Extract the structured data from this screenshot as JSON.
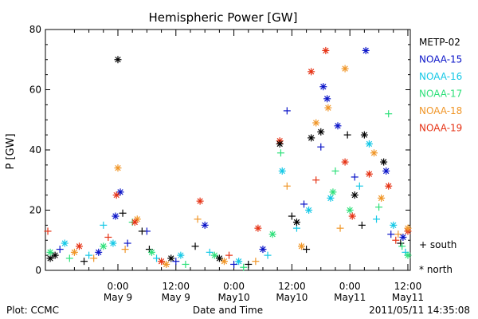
{
  "chart_data": {
    "type": "scatter",
    "title": "Hemispheric Power [GW]",
    "ylabel": "P [GW]",
    "xlabel": "Date and Time",
    "ylim": [
      0,
      80
    ],
    "y_ticks": [
      0,
      20,
      40,
      60,
      80
    ],
    "xlim_hours": [
      -15,
      60.5
    ],
    "x_ticks": [
      {
        "h": 0,
        "time": "0:00",
        "date": "May 9"
      },
      {
        "h": 12,
        "time": "12:00",
        "date": "May 9"
      },
      {
        "h": 24,
        "time": "0:00",
        "date": "May10"
      },
      {
        "h": 36,
        "time": "12:00",
        "date": "May10"
      },
      {
        "h": 48,
        "time": "0:00",
        "date": "May11"
      },
      {
        "h": 60,
        "time": "12:00",
        "date": "May11"
      }
    ],
    "grid": false,
    "legend_position": "right",
    "series": [
      {
        "name": "METP-02",
        "color": "#000000"
      },
      {
        "name": "NOAA-15",
        "color": "#0a14c8"
      },
      {
        "name": "NOAA-16",
        "color": "#14c8e6"
      },
      {
        "name": "NOAA-17",
        "color": "#2ee07a"
      },
      {
        "name": "NOAA-18",
        "color": "#f09628"
      },
      {
        "name": "NOAA-19",
        "color": "#e63214"
      }
    ],
    "marker_legend": [
      {
        "symbol": "+",
        "label": "south"
      },
      {
        "symbol": "*",
        "label": "north"
      }
    ],
    "points": [
      {
        "s": 0,
        "m": "*",
        "x": 0,
        "y": 70
      },
      {
        "s": 1,
        "m": "*",
        "x": 0.5,
        "y": 26
      },
      {
        "s": 1,
        "m": "*",
        "x": -0.5,
        "y": 18
      },
      {
        "s": 4,
        "m": "*",
        "x": 0,
        "y": 34
      },
      {
        "s": 5,
        "m": "*",
        "x": -0.3,
        "y": 25
      },
      {
        "s": 0,
        "m": "+",
        "x": 1,
        "y": 19
      },
      {
        "s": 2,
        "m": "+",
        "x": -3,
        "y": 15
      },
      {
        "s": 3,
        "m": "+",
        "x": 3,
        "y": 16
      },
      {
        "s": 1,
        "m": "+",
        "x": 6,
        "y": 13
      },
      {
        "s": 0,
        "m": "+",
        "x": 5,
        "y": 13
      },
      {
        "s": 4,
        "m": "*",
        "x": 4,
        "y": 17
      },
      {
        "s": 5,
        "m": "*",
        "x": 3.5,
        "y": 16
      },
      {
        "s": 0,
        "m": "*",
        "x": -13,
        "y": 5
      },
      {
        "s": 1,
        "m": "+",
        "x": -12,
        "y": 7
      },
      {
        "s": 2,
        "m": "*",
        "x": -11,
        "y": 9
      },
      {
        "s": 3,
        "m": "+",
        "x": -10,
        "y": 4
      },
      {
        "s": 4,
        "m": "*",
        "x": -9,
        "y": 6
      },
      {
        "s": 5,
        "m": "*",
        "x": -8,
        "y": 8
      },
      {
        "s": 0,
        "m": "+",
        "x": -7,
        "y": 3
      },
      {
        "s": 2,
        "m": "+",
        "x": -6,
        "y": 5
      },
      {
        "s": 4,
        "m": "+",
        "x": -5,
        "y": 4
      },
      {
        "s": 1,
        "m": "*",
        "x": -4,
        "y": 6
      },
      {
        "s": 3,
        "m": "*",
        "x": -3,
        "y": 8
      },
      {
        "s": 5,
        "m": "+",
        "x": -2,
        "y": 11
      },
      {
        "s": 0,
        "m": "*",
        "x": -14,
        "y": 4
      },
      {
        "s": 5,
        "m": "+",
        "x": -14.5,
        "y": 13
      },
      {
        "s": 3,
        "m": "*",
        "x": -14,
        "y": 6
      },
      {
        "s": 2,
        "m": "*",
        "x": -1,
        "y": 9
      },
      {
        "s": 4,
        "m": "+",
        "x": 1.5,
        "y": 7
      },
      {
        "s": 1,
        "m": "+",
        "x": 2,
        "y": 9
      },
      {
        "s": 0,
        "m": "+",
        "x": 6.5,
        "y": 7
      },
      {
        "s": 3,
        "m": "*",
        "x": 7,
        "y": 6
      },
      {
        "s": 2,
        "m": "+",
        "x": 8,
        "y": 4
      },
      {
        "s": 5,
        "m": "*",
        "x": 9,
        "y": 3
      },
      {
        "s": 4,
        "m": "*",
        "x": 10,
        "y": 2
      },
      {
        "s": 0,
        "m": "*",
        "x": 11,
        "y": 4
      },
      {
        "s": 1,
        "m": "+",
        "x": 12,
        "y": 3
      },
      {
        "s": 2,
        "m": "*",
        "x": 13,
        "y": 5
      },
      {
        "s": 3,
        "m": "+",
        "x": 14,
        "y": 2
      },
      {
        "s": 0,
        "m": "+",
        "x": 16,
        "y": 8
      },
      {
        "s": 4,
        "m": "+",
        "x": 16.5,
        "y": 17
      },
      {
        "s": 5,
        "m": "*",
        "x": 17,
        "y": 23
      },
      {
        "s": 1,
        "m": "*",
        "x": 18,
        "y": 15
      },
      {
        "s": 2,
        "m": "+",
        "x": 19,
        "y": 6
      },
      {
        "s": 3,
        "m": "*",
        "x": 20,
        "y": 5
      },
      {
        "s": 0,
        "m": "*",
        "x": 21,
        "y": 4
      },
      {
        "s": 4,
        "m": "*",
        "x": 22,
        "y": 3
      },
      {
        "s": 5,
        "m": "+",
        "x": 23,
        "y": 5
      },
      {
        "s": 1,
        "m": "+",
        "x": 24,
        "y": 2
      },
      {
        "s": 2,
        "m": "*",
        "x": 25,
        "y": 3
      },
      {
        "s": 3,
        "m": "+",
        "x": 26,
        "y": 1
      },
      {
        "s": 0,
        "m": "+",
        "x": 27,
        "y": 2
      },
      {
        "s": 5,
        "m": "*",
        "x": 29,
        "y": 14
      },
      {
        "s": 4,
        "m": "+",
        "x": 28.5,
        "y": 3
      },
      {
        "s": 1,
        "m": "*",
        "x": 30,
        "y": 7
      },
      {
        "s": 2,
        "m": "+",
        "x": 31,
        "y": 5
      },
      {
        "s": 3,
        "m": "*",
        "x": 32,
        "y": 12
      },
      {
        "s": 5,
        "m": "*",
        "x": 33.5,
        "y": 43
      },
      {
        "s": 0,
        "m": "*",
        "x": 33.5,
        "y": 42
      },
      {
        "s": 3,
        "m": "+",
        "x": 33.7,
        "y": 39
      },
      {
        "s": 2,
        "m": "*",
        "x": 34,
        "y": 33
      },
      {
        "s": 1,
        "m": "+",
        "x": 35,
        "y": 53
      },
      {
        "s": 4,
        "m": "+",
        "x": 35,
        "y": 28
      },
      {
        "s": 0,
        "m": "+",
        "x": 36,
        "y": 18
      },
      {
        "s": 2,
        "m": "+",
        "x": 37,
        "y": 14
      },
      {
        "s": 4,
        "m": "*",
        "x": 38,
        "y": 8
      },
      {
        "s": 0,
        "m": "+",
        "x": 39,
        "y": 7
      },
      {
        "s": 5,
        "m": "*",
        "x": 40,
        "y": 66
      },
      {
        "s": 0,
        "m": "*",
        "x": 40,
        "y": 44
      },
      {
        "s": 4,
        "m": "*",
        "x": 41,
        "y": 49
      },
      {
        "s": 1,
        "m": "*",
        "x": 42.5,
        "y": 61
      },
      {
        "s": 5,
        "m": "*",
        "x": 43,
        "y": 73
      },
      {
        "s": 4,
        "m": "*",
        "x": 43.5,
        "y": 54
      },
      {
        "s": 1,
        "m": "*",
        "x": 43.3,
        "y": 57
      },
      {
        "s": 0,
        "m": "*",
        "x": 42,
        "y": 46
      },
      {
        "s": 1,
        "m": "+",
        "x": 42,
        "y": 41
      },
      {
        "s": 5,
        "m": "+",
        "x": 41,
        "y": 30
      },
      {
        "s": 2,
        "m": "*",
        "x": 44,
        "y": 24
      },
      {
        "s": 3,
        "m": "+",
        "x": 45,
        "y": 33
      },
      {
        "s": 1,
        "m": "*",
        "x": 45.5,
        "y": 48
      },
      {
        "s": 4,
        "m": "*",
        "x": 47,
        "y": 67
      },
      {
        "s": 0,
        "m": "+",
        "x": 47.5,
        "y": 45
      },
      {
        "s": 5,
        "m": "*",
        "x": 47,
        "y": 36
      },
      {
        "s": 3,
        "m": "*",
        "x": 48,
        "y": 20
      },
      {
        "s": 1,
        "m": "+",
        "x": 49,
        "y": 31
      },
      {
        "s": 0,
        "m": "*",
        "x": 49,
        "y": 25
      },
      {
        "s": 2,
        "m": "+",
        "x": 50,
        "y": 28
      },
      {
        "s": 1,
        "m": "*",
        "x": 51.3,
        "y": 73
      },
      {
        "s": 0,
        "m": "*",
        "x": 51,
        "y": 45
      },
      {
        "s": 2,
        "m": "*",
        "x": 52,
        "y": 42
      },
      {
        "s": 5,
        "m": "*",
        "x": 52,
        "y": 32
      },
      {
        "s": 4,
        "m": "*",
        "x": 53,
        "y": 39
      },
      {
        "s": 3,
        "m": "+",
        "x": 54,
        "y": 21
      },
      {
        "s": 0,
        "m": "*",
        "x": 55,
        "y": 36
      },
      {
        "s": 1,
        "m": "*",
        "x": 55.5,
        "y": 33
      },
      {
        "s": 3,
        "m": "+",
        "x": 56,
        "y": 52
      },
      {
        "s": 5,
        "m": "*",
        "x": 56,
        "y": 28
      },
      {
        "s": 2,
        "m": "*",
        "x": 57,
        "y": 15
      },
      {
        "s": 4,
        "m": "+",
        "x": 58,
        "y": 12
      },
      {
        "s": 0,
        "m": "+",
        "x": 58.5,
        "y": 9
      },
      {
        "s": 1,
        "m": "*",
        "x": 59,
        "y": 11
      },
      {
        "s": 2,
        "m": "+",
        "x": 59.5,
        "y": 6
      },
      {
        "s": 3,
        "m": "*",
        "x": 60,
        "y": 5
      },
      {
        "s": 5,
        "m": "*",
        "x": 60,
        "y": 13
      },
      {
        "s": 4,
        "m": "*",
        "x": 60,
        "y": 14
      },
      {
        "s": 0,
        "m": "*",
        "x": 37,
        "y": 16
      },
      {
        "s": 1,
        "m": "+",
        "x": 38.5,
        "y": 22
      },
      {
        "s": 2,
        "m": "*",
        "x": 39.5,
        "y": 20
      },
      {
        "s": 3,
        "m": "*",
        "x": 44.5,
        "y": 26
      },
      {
        "s": 4,
        "m": "+",
        "x": 46,
        "y": 14
      },
      {
        "s": 5,
        "m": "*",
        "x": 48.5,
        "y": 18
      },
      {
        "s": 0,
        "m": "+",
        "x": 50.5,
        "y": 15
      },
      {
        "s": 2,
        "m": "+",
        "x": 53.5,
        "y": 17
      },
      {
        "s": 4,
        "m": "*",
        "x": 54.5,
        "y": 24
      },
      {
        "s": 1,
        "m": "+",
        "x": 56.5,
        "y": 12
      },
      {
        "s": 5,
        "m": "+",
        "x": 57.5,
        "y": 10
      },
      {
        "s": 3,
        "m": "+",
        "x": 58.8,
        "y": 8
      }
    ]
  },
  "footer": {
    "plot_credit": "Plot: CCMC",
    "timestamp": "2011/05/11 14:35:08"
  }
}
